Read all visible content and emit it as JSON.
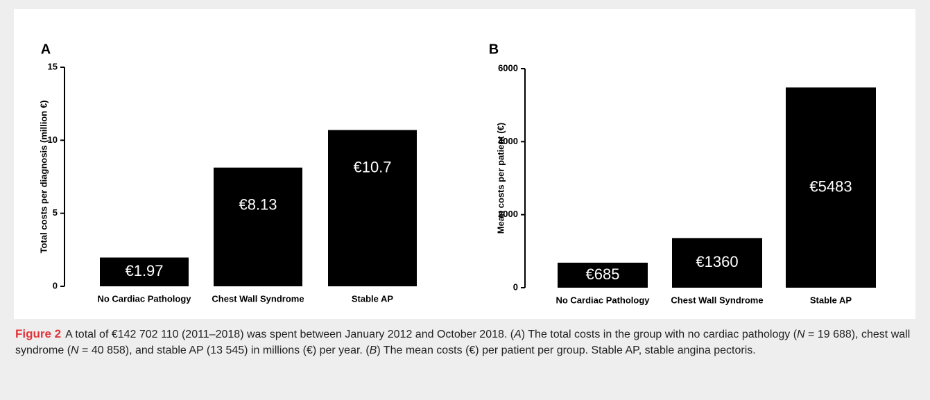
{
  "chart_data": [
    {
      "type": "bar",
      "panel": "A",
      "ylabel": "Total costs per diagnosis (million €)",
      "categories": [
        "No Cardiac Pathology",
        "Chest Wall Syndrome",
        "Stable AP"
      ],
      "values": [
        1.97,
        8.13,
        10.7
      ],
      "value_labels": [
        "€1.97",
        "€8.13",
        "€10.7"
      ],
      "color": "#000000",
      "ylim": [
        0,
        15
      ],
      "yticks": [
        0,
        5,
        10,
        15
      ]
    },
    {
      "type": "bar",
      "panel": "B",
      "ylabel": "Mean costs per patient (€)",
      "categories": [
        "No Cardiac Pathology",
        "Chest Wall Syndrome",
        "Stable AP"
      ],
      "values": [
        685,
        1360,
        5483
      ],
      "value_labels": [
        "€685",
        "€1360",
        "€5483"
      ],
      "color": "#000000",
      "ylim": [
        0,
        6000
      ],
      "yticks": [
        0,
        2000,
        4000,
        6000
      ]
    }
  ],
  "caption": {
    "label": "Figure 2",
    "segments": [
      {
        "text": "A total of €142 702 110 (2011–2018) was spent between January 2012 and October 2018. (",
        "italic": false
      },
      {
        "text": "A",
        "italic": true
      },
      {
        "text": ") The total costs in the group with no cardiac pathology (",
        "italic": false
      },
      {
        "text": "N",
        "italic": true
      },
      {
        "text": " = 19 688), chest wall syndrome (",
        "italic": false
      },
      {
        "text": "N",
        "italic": true
      },
      {
        "text": " = 40 858), and stable AP (13 545) in millions (€) per year. (",
        "italic": false
      },
      {
        "text": "B",
        "italic": true
      },
      {
        "text": ") The mean costs (€) per patient per group. Stable AP, stable angina pectoris.",
        "italic": false
      }
    ]
  }
}
